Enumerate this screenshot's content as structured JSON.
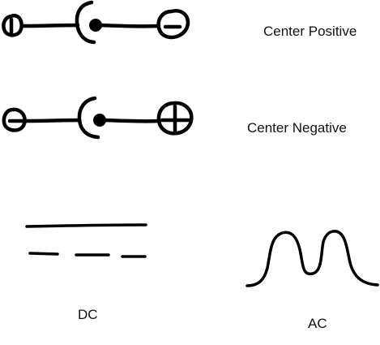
{
  "polarity": {
    "center_positive": {
      "label": "Center Positive",
      "left_terminal_symbol": "plus-icon",
      "right_terminal_symbol": "minus-icon"
    },
    "center_negative": {
      "label": "Center Negative",
      "left_terminal_symbol": "minus-icon",
      "right_terminal_symbol": "plus-icon"
    }
  },
  "current_type": {
    "dc_label": "DC",
    "ac_label": "AC"
  },
  "colors": {
    "ink": "#000000",
    "background": "#ffffff"
  }
}
